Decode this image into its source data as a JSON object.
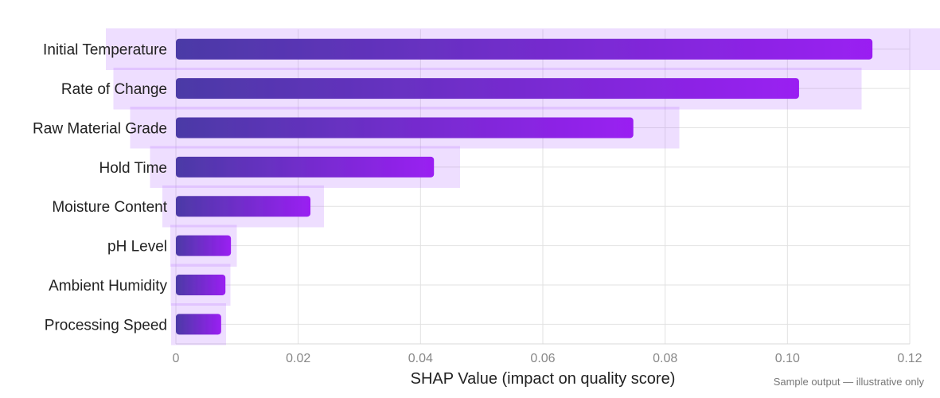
{
  "chart_data": {
    "type": "bar",
    "orientation": "horizontal",
    "categories": [
      "Initial Temperature",
      "Rate of Change",
      "Raw Material Grade",
      "Hold Time",
      "Moisture Content",
      "pH Level",
      "Ambient Humidity",
      "Processing Speed"
    ],
    "values": [
      0.1139,
      0.1019,
      0.0748,
      0.0422,
      0.022,
      0.009,
      0.0081,
      0.0074
    ],
    "xlabel": "SHAP Value (impact on quality score)",
    "ylabel": "",
    "xlim": [
      0,
      0.12
    ],
    "xticks": [
      "0",
      "0.02",
      "0.04",
      "0.06",
      "0.08",
      "0.10",
      "0.12"
    ],
    "grid": true,
    "colors": {
      "bar_start": "#4b3aa6",
      "bar_end": "#9a1ff2",
      "grid": "#e2e2e2"
    }
  },
  "note": "Sample output — illustrative only"
}
